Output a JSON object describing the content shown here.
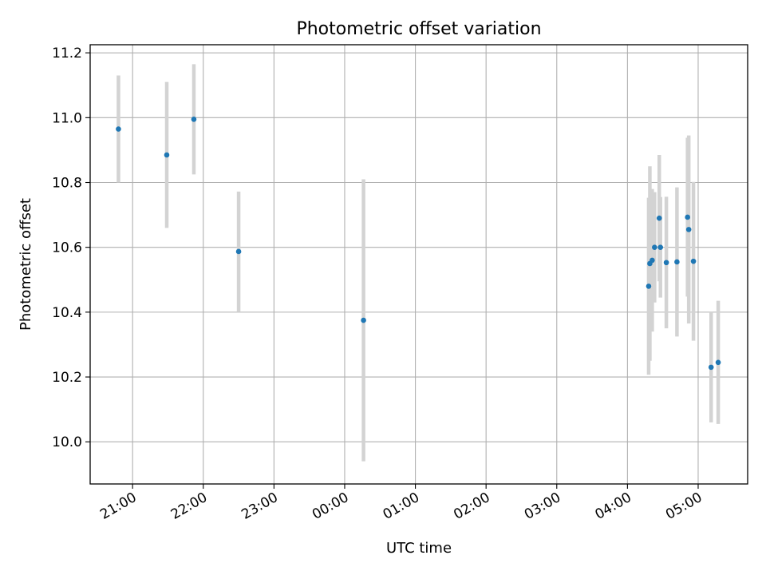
{
  "chart_data": {
    "type": "scatter",
    "title": "Photometric offset variation",
    "xlabel": "UTC time",
    "ylabel": "Photometric offset",
    "x_ticks": [
      "21:00",
      "22:00",
      "23:00",
      "00:00",
      "01:00",
      "02:00",
      "03:00",
      "04:00",
      "05:00"
    ],
    "y_ticks": [
      "10.0",
      "10.2",
      "10.4",
      "10.6",
      "10.8",
      "11.0",
      "11.2"
    ],
    "xlim": [
      "20:24",
      "05:42"
    ],
    "ylim": [
      9.87,
      11.225
    ],
    "grid": true,
    "colors": {
      "marker": "#1f77b4",
      "errorbar": "#d3d3d3",
      "grid": "#b0b0b0"
    },
    "points": [
      {
        "t": "20:48",
        "y": 10.965,
        "yerr": 0.165
      },
      {
        "t": "21:29",
        "y": 10.885,
        "yerr": 0.225
      },
      {
        "t": "21:52",
        "y": 10.995,
        "yerr": 0.17
      },
      {
        "t": "22:30",
        "y": 10.587,
        "yerr": 0.185
      },
      {
        "t": "00:16",
        "y": 10.375,
        "yerr": 0.435
      },
      {
        "t": "04:18",
        "y": 10.48,
        "yerr": 0.273
      },
      {
        "t": "04:19",
        "y": 10.55,
        "yerr": 0.3
      },
      {
        "t": "04:21",
        "y": 10.56,
        "yerr": 0.22
      },
      {
        "t": "04:23",
        "y": 10.6,
        "yerr": 0.17
      },
      {
        "t": "04:27",
        "y": 10.69,
        "yerr": 0.195
      },
      {
        "t": "04:28",
        "y": 10.6,
        "yerr": 0.155
      },
      {
        "t": "04:33",
        "y": 10.553,
        "yerr": 0.203
      },
      {
        "t": "04:42",
        "y": 10.555,
        "yerr": 0.23
      },
      {
        "t": "04:51",
        "y": 10.693,
        "yerr": 0.245
      },
      {
        "t": "04:52",
        "y": 10.655,
        "yerr": 0.29
      },
      {
        "t": "04:56",
        "y": 10.557,
        "yerr": 0.245
      },
      {
        "t": "05:11",
        "y": 10.23,
        "yerr": 0.17
      },
      {
        "t": "05:17",
        "y": 10.245,
        "yerr": 0.19
      }
    ]
  }
}
